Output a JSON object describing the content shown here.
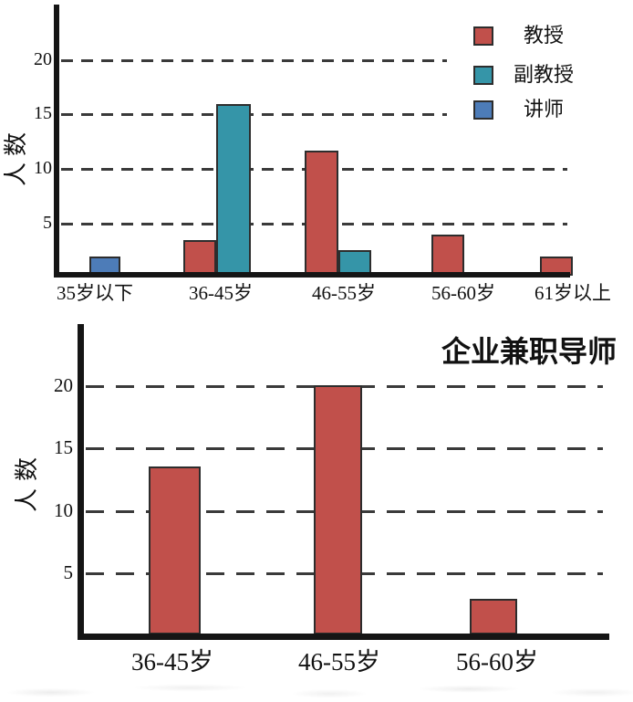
{
  "colors": {
    "professor_red": "#c1504b",
    "associate_teal": "#3595a8",
    "lecturer_blue": "#4d7cb8",
    "axis": "#151515",
    "grid": "#3a3a3a",
    "bar_outline": "#2d2d2d",
    "background": "#ffffff"
  },
  "chart_data": [
    {
      "type": "bar",
      "title": "",
      "ylabel": "人数",
      "xlabel": "",
      "categories": [
        "35岁以下",
        "36-45岁",
        "46-55岁",
        "56-60岁",
        "61岁以上"
      ],
      "series": [
        {
          "name": "教授",
          "color": "#c1504b",
          "values": [
            0,
            3.5,
            11.7,
            4,
            2
          ]
        },
        {
          "name": "副教授",
          "color": "#3595a8",
          "values": [
            0,
            16,
            2.6,
            0,
            0
          ]
        },
        {
          "name": "讲师",
          "color": "#4d7cb8",
          "values": [
            2,
            0,
            0,
            0,
            0
          ]
        }
      ],
      "yticks": [
        5,
        10,
        15,
        20
      ],
      "ylim": [
        0,
        25
      ],
      "grid": "horizontal-dashed",
      "legend_position": "upper-right"
    },
    {
      "type": "bar",
      "title": "企业兼职导师",
      "ylabel": "人数",
      "xlabel": "",
      "categories": [
        "36-45岁",
        "46-55岁",
        "56-60岁"
      ],
      "values": [
        13.6,
        20.1,
        3
      ],
      "bar_color": "#c1504b",
      "yticks": [
        5,
        10,
        15,
        20
      ],
      "ylim": [
        0,
        25
      ],
      "grid": "horizontal-dashed",
      "legend_position": "none"
    }
  ]
}
